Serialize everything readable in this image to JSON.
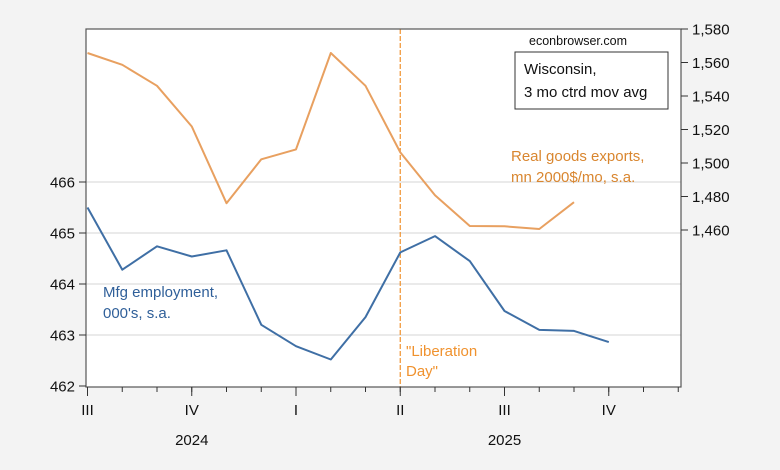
{
  "chart_data": {
    "type": "line",
    "title": "Wisconsin, 3 mo ctrd mov avg",
    "title_lines": [
      "Wisconsin,",
      "3 mo ctrd mov avg"
    ],
    "source": "econbrowser.com",
    "x": [
      "2024-07",
      "2024-08",
      "2024-09",
      "2024-10",
      "2024-11",
      "2024-12",
      "2025-01",
      "2025-02",
      "2025-03",
      "2025-04",
      "2025-05",
      "2025-06",
      "2025-07",
      "2025-08",
      "2025-09",
      "2025-10"
    ],
    "x_range": [
      "2024-07",
      "2025-12"
    ],
    "x_quarter_ticks": [
      {
        "month": "2024-07",
        "label": "III"
      },
      {
        "month": "2024-10",
        "label": "IV"
      },
      {
        "month": "2025-01",
        "label": "I"
      },
      {
        "month": "2025-04",
        "label": "II"
      },
      {
        "month": "2025-07",
        "label": "III"
      },
      {
        "month": "2025-10",
        "label": "IV"
      }
    ],
    "x_year_labels": [
      {
        "label": "2024",
        "center_month": 3.0
      },
      {
        "label": "2025",
        "center_month": 12.0
      }
    ],
    "series": [
      {
        "name": "Mfg employment, 000's, s.a.",
        "label_lines": [
          "Mfg employment,",
          "000's, s.a."
        ],
        "axis": "left",
        "color": "#3f6fa5",
        "values": [
          465.5,
          464.28,
          464.74,
          464.54,
          464.66,
          463.2,
          462.78,
          462.52,
          463.35,
          464.62,
          464.94,
          464.45,
          463.47,
          463.1,
          463.08,
          462.86
        ]
      },
      {
        "name": "Real goods exports, mn 2000$/mo, s.a.",
        "label_lines": [
          "Real goods exports,",
          "mn 2000$/mo, s.a."
        ],
        "axis": "right",
        "color": "#e8a060",
        "values": [
          1565.7,
          1558.6,
          1546.1,
          1521.8,
          1476.0,
          1502.2,
          1508.1,
          1565.7,
          1546.1,
          1506.3,
          1480.8,
          1462.4,
          1462.2,
          1460.6,
          1476.6,
          null
        ]
      }
    ],
    "left_axis": {
      "ylim": [
        462,
        466.85
      ],
      "ticks": [
        462,
        463,
        464,
        465,
        466
      ],
      "tick_labels": [
        "462",
        "463",
        "464",
        "465",
        "466"
      ]
    },
    "right_axis": {
      "ylim": [
        1367,
        1580
      ],
      "ticks": [
        1460,
        1480,
        1500,
        1520,
        1540,
        1560,
        1580
      ],
      "tick_labels": [
        "1,460",
        "1,480",
        "1,500",
        "1,520",
        "1,540",
        "1,560",
        "1,580"
      ]
    },
    "grid": "horizontal, left axis",
    "annotations": [
      {
        "type": "vline",
        "x": "2025-04",
        "color": "#f0922e",
        "style": "dashed",
        "label_lines": [
          "\"Liberation",
          "Day\""
        ]
      }
    ],
    "legend": "inline labels"
  }
}
